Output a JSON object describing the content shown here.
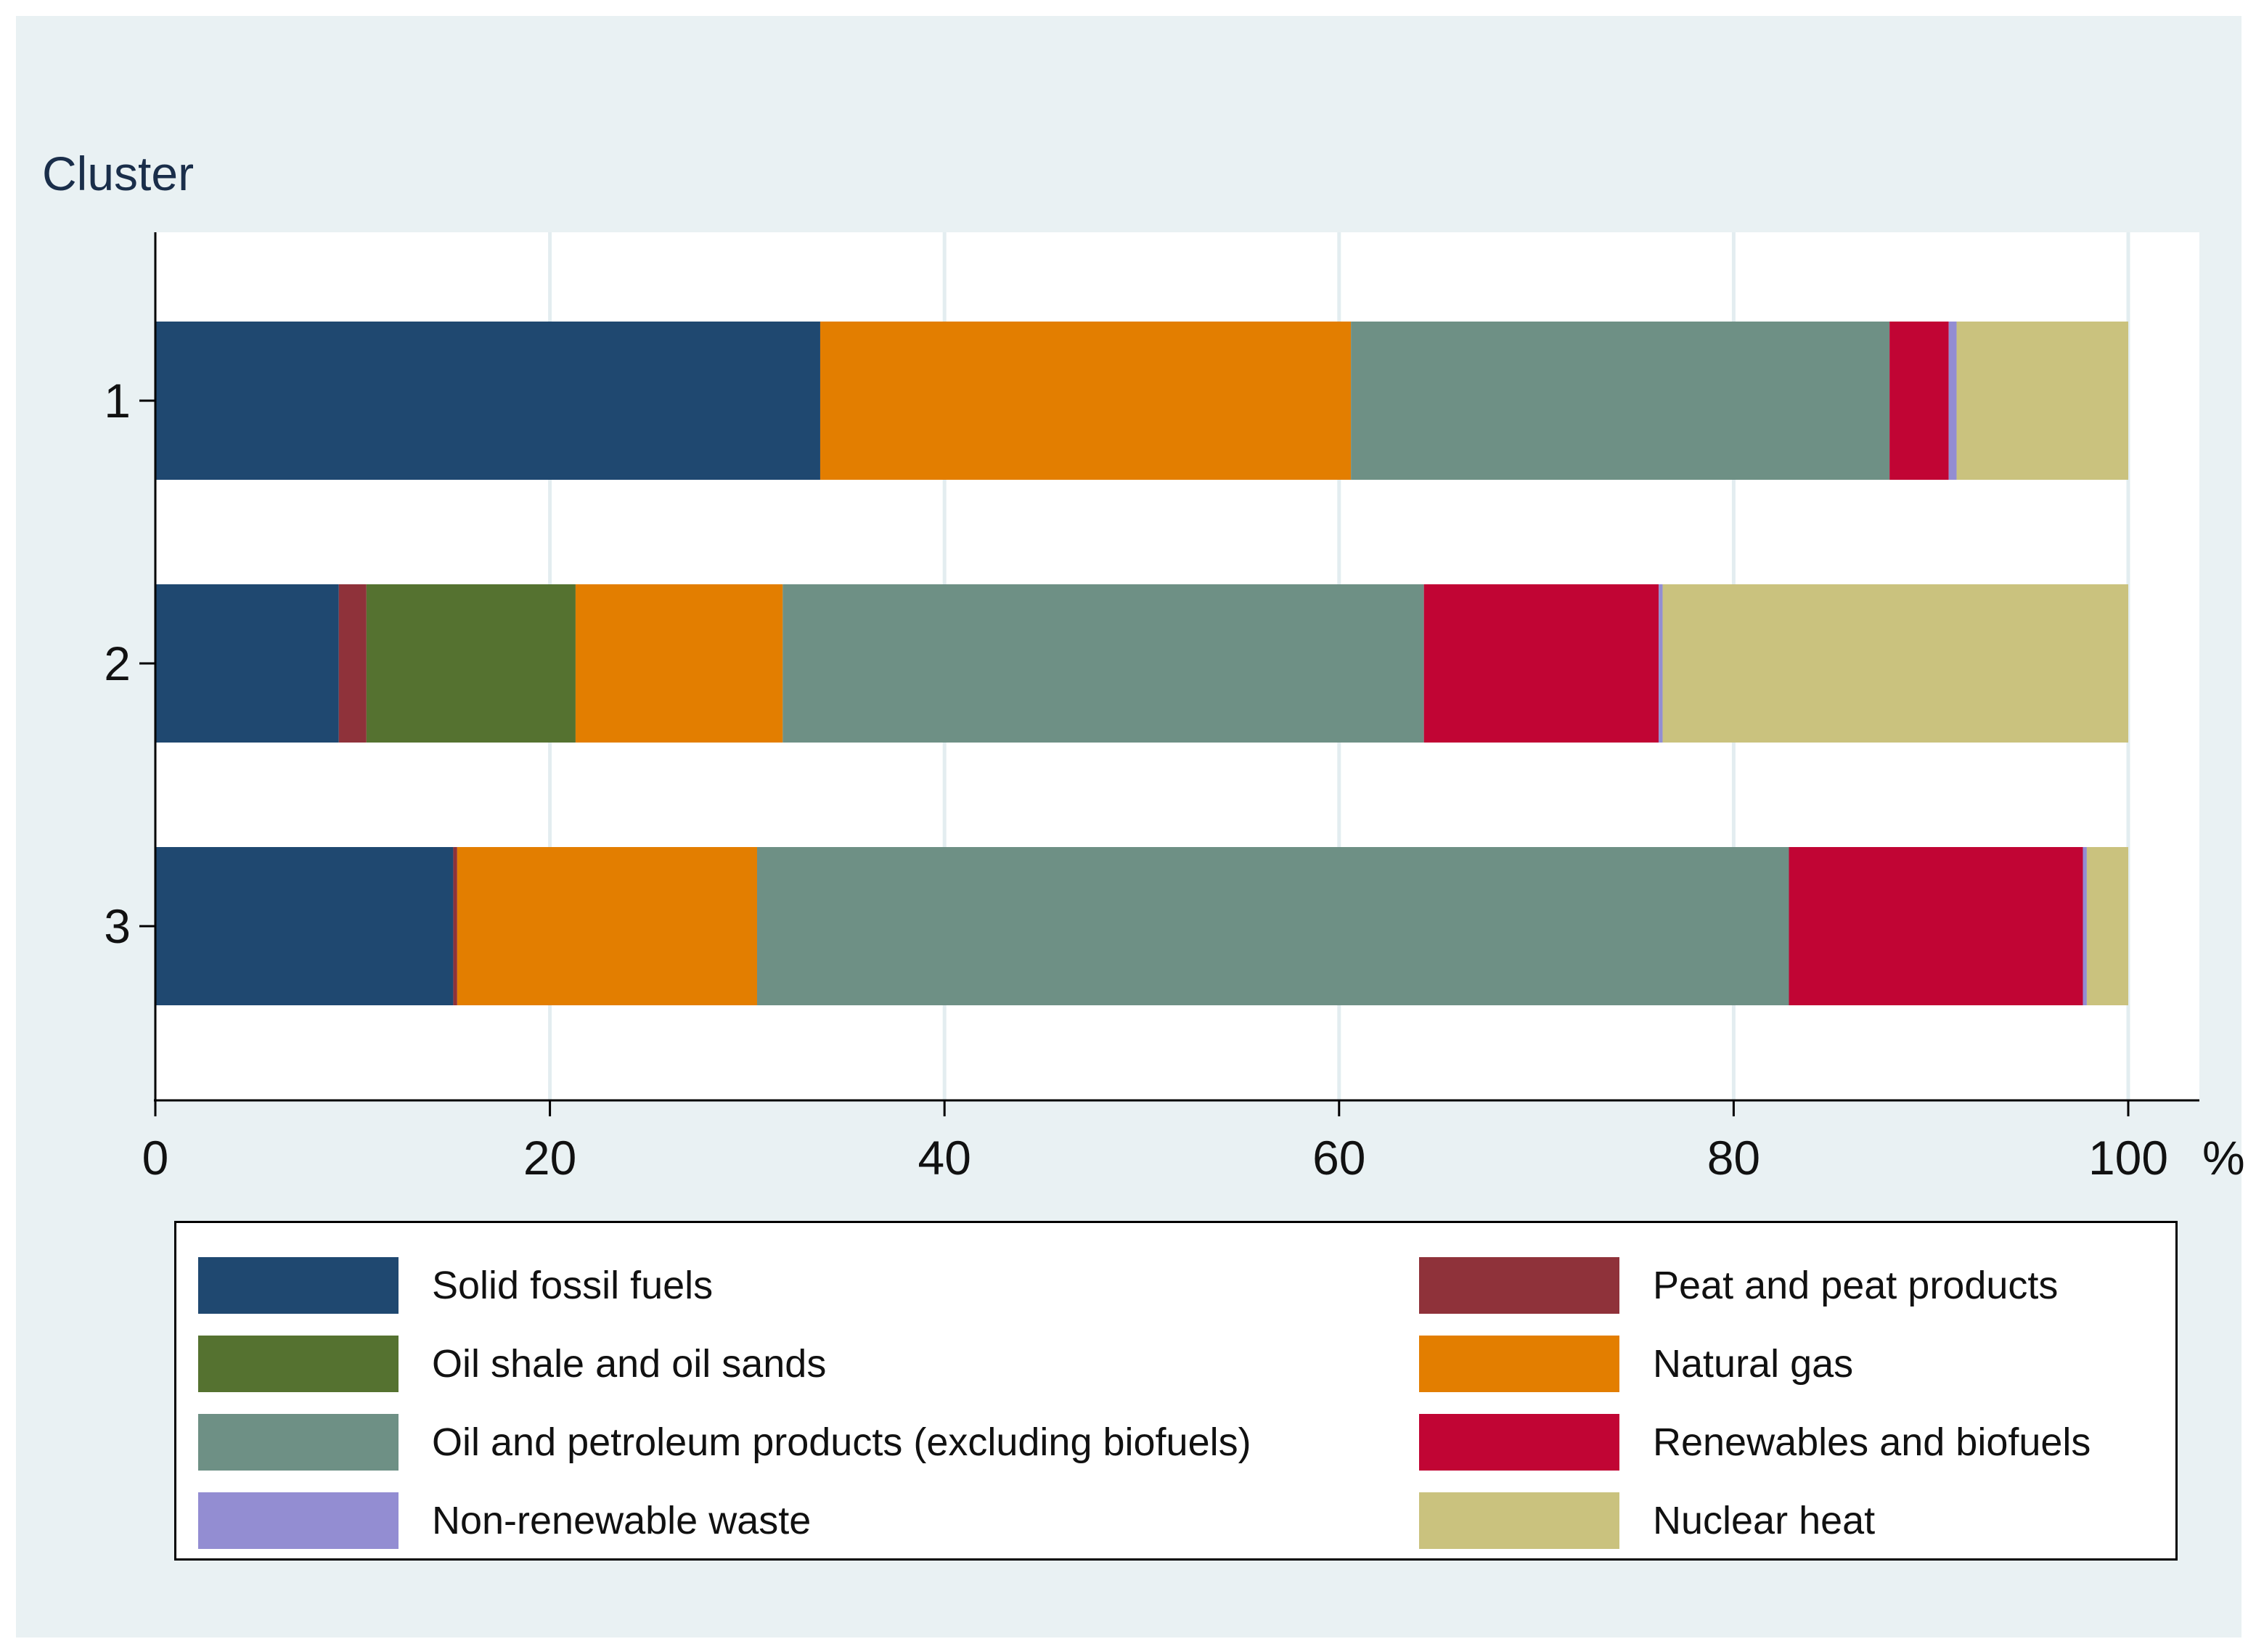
{
  "chart_data": {
    "type": "bar",
    "orientation": "horizontal",
    "stacked": true,
    "title": "",
    "ylabel": "Cluster",
    "xlabel": "",
    "x_unit": "%",
    "xlim": [
      0,
      100
    ],
    "x_ticks": [
      "0",
      "20",
      "40",
      "60",
      "80",
      "100"
    ],
    "categories": [
      "1",
      "2",
      "3"
    ],
    "grid": true,
    "legend_position": "bottom",
    "series": [
      {
        "name": "Solid fossil fuels",
        "color": "#1f4870",
        "values": [
          33.7,
          9.3,
          15.1
        ]
      },
      {
        "name": "Peat and peat products",
        "color": "#8f323a",
        "values": [
          0.0,
          1.4,
          0.2
        ]
      },
      {
        "name": "Oil shale and oil sands",
        "color": "#557230",
        "values": [
          0.0,
          10.6,
          0.0
        ]
      },
      {
        "name": "Natural gas",
        "color": "#e37e00",
        "values": [
          26.9,
          10.5,
          15.2
        ]
      },
      {
        "name": "Oil and petroleum products (excluding biofuels)",
        "color": "#6e9085",
        "values": [
          27.3,
          32.5,
          52.3
        ]
      },
      {
        "name": "Renewables and biofuels",
        "color": "#c10534",
        "values": [
          3.0,
          11.9,
          14.9
        ]
      },
      {
        "name": "Non-renewable waste",
        "color": "#938dd2",
        "values": [
          0.4,
          0.2,
          0.2
        ]
      },
      {
        "name": "Nuclear heat",
        "color": "#cac27e",
        "values": [
          8.7,
          23.6,
          2.1
        ]
      }
    ]
  }
}
